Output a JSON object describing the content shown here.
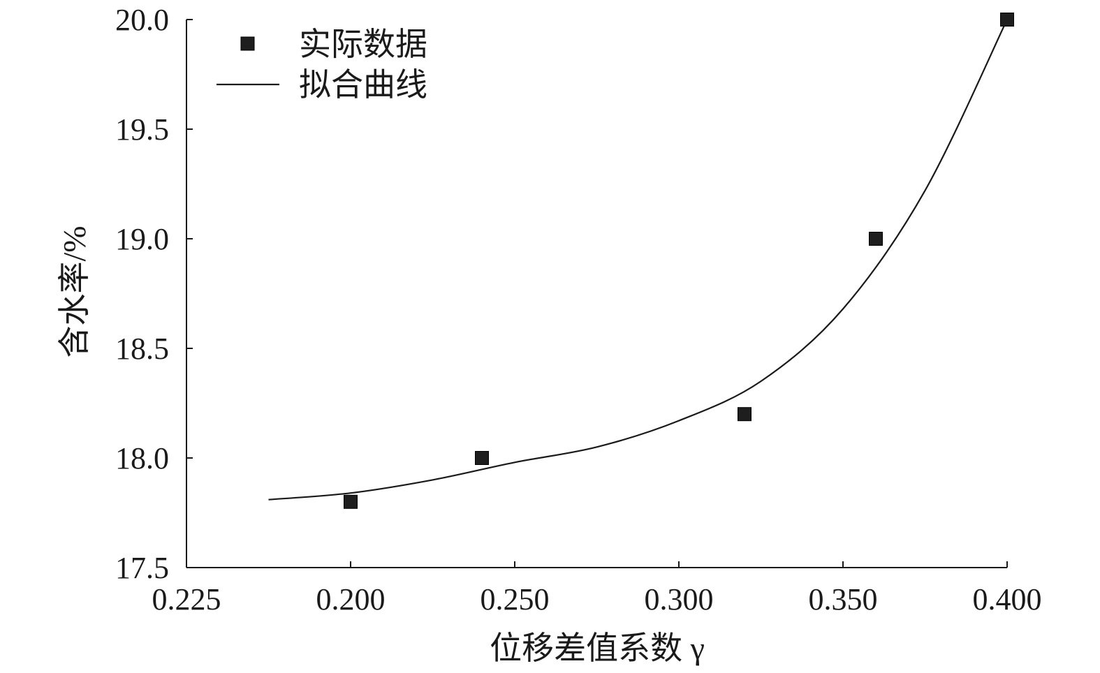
{
  "chart_data": {
    "type": "scatter",
    "title": "",
    "xlabel": "位移差值系数 γ",
    "ylabel": "含水率/%",
    "x_tick_labels": [
      "0.225",
      "0.200",
      "0.250",
      "0.300",
      "0.350",
      "0.400"
    ],
    "y_ticks": [
      "17.5",
      "18.0",
      "18.5",
      "19.0",
      "19.5",
      "20.0"
    ],
    "ylim": [
      17.5,
      20.0
    ],
    "grid": false,
    "legend_position": "top-left",
    "series": [
      {
        "name": "实际数据",
        "kind": "markers",
        "x": [
          0.2,
          0.24,
          0.32,
          0.36,
          0.4
        ],
        "y": [
          17.8,
          18.0,
          18.2,
          19.0,
          20.0
        ]
      },
      {
        "name": "拟合曲线",
        "kind": "line",
        "x": [
          0.175,
          0.2,
          0.225,
          0.25,
          0.275,
          0.3,
          0.325,
          0.35,
          0.375,
          0.4
        ],
        "y": [
          17.81,
          17.84,
          17.9,
          17.98,
          18.05,
          18.17,
          18.35,
          18.68,
          19.22,
          20.0
        ]
      }
    ]
  }
}
